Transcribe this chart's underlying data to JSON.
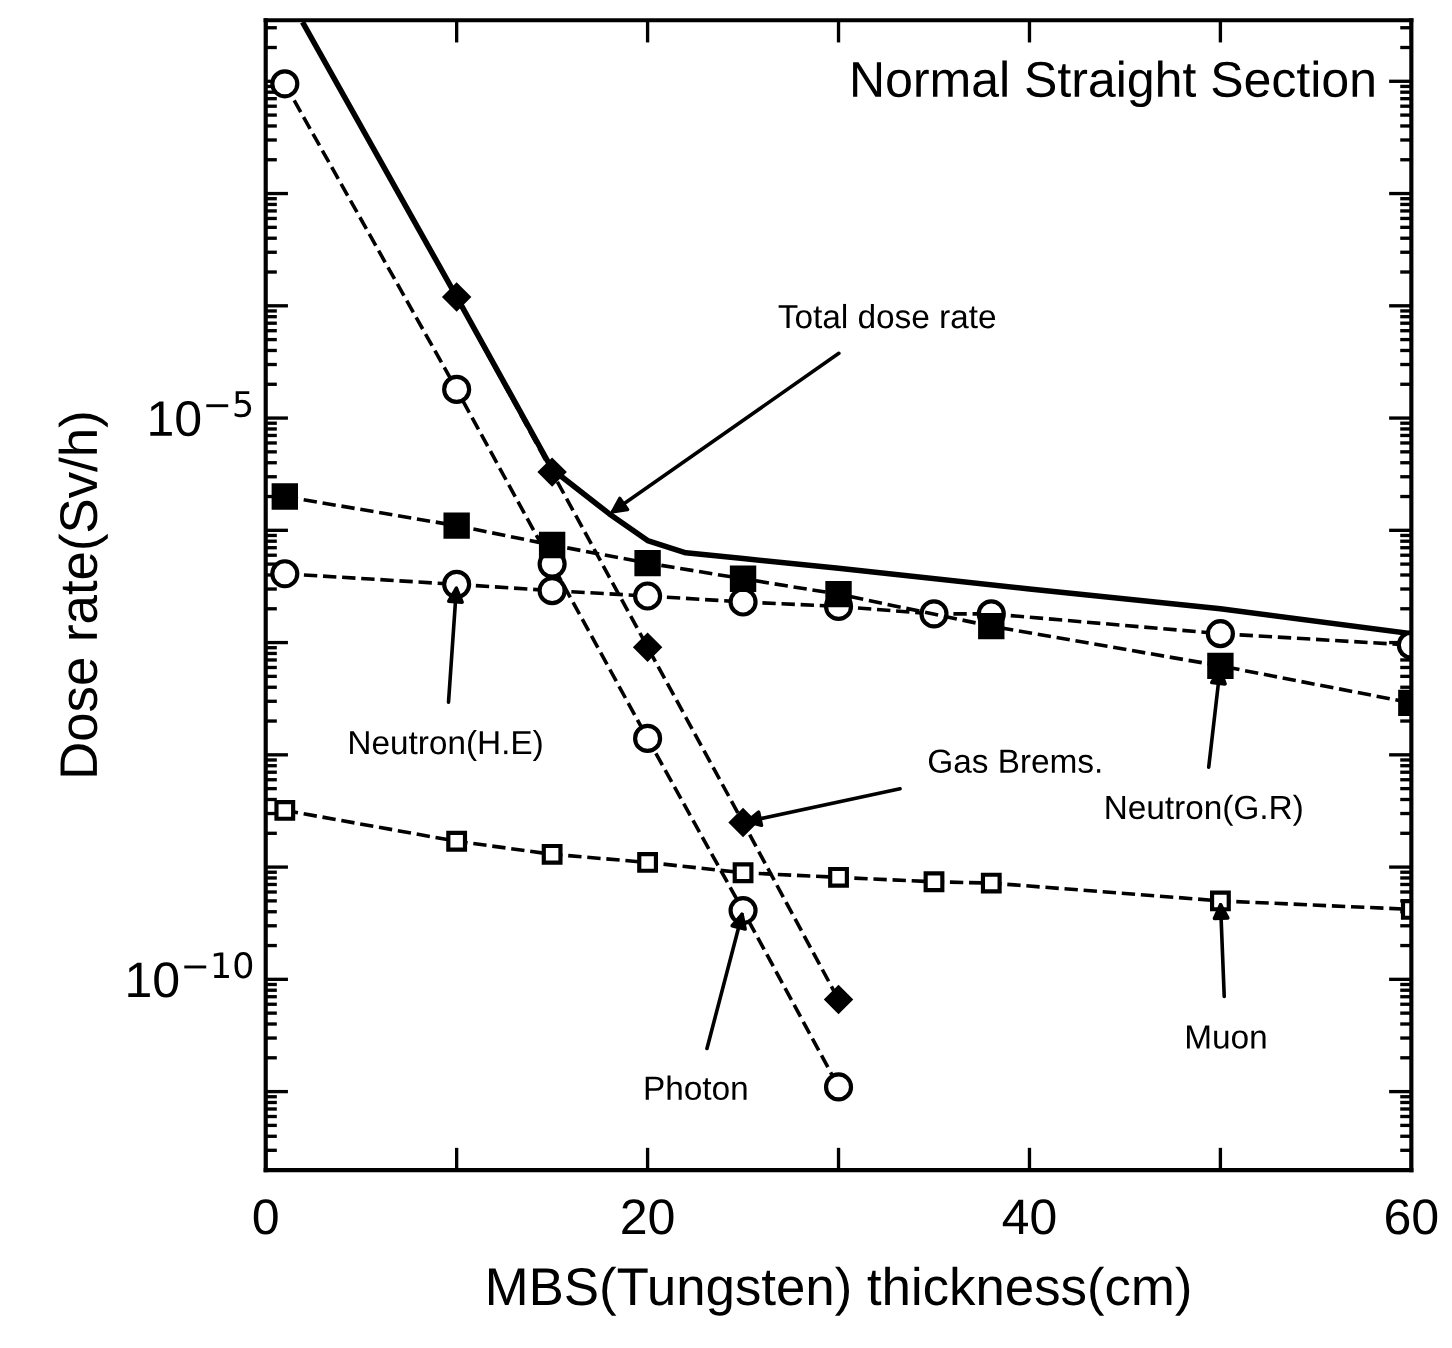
{
  "chart_data": {
    "type": "line",
    "title": "Normal Straight Section",
    "xlabel": "MBS(Tungsten) thickness(cm)",
    "ylabel": "Dose rate(Sv/h)",
    "log": "y",
    "grid": false,
    "legend": false,
    "line_style": "dashed",
    "xlim": [
      0,
      60
    ],
    "xticks": [
      0,
      {
        "value": 10,
        "label": null
      },
      20,
      {
        "value": 30,
        "label": null
      },
      40,
      {
        "value": 50,
        "label": null
      },
      60
    ],
    "ylim": [
      2e-12,
      0.035
    ],
    "yticks": [
      {
        "value": 1e-11,
        "label": null
      },
      {
        "value": 1e-10,
        "label": "10$^{−10}$"
      },
      {
        "value": 1e-09,
        "label": null
      },
      {
        "value": 1e-08,
        "label": null
      },
      {
        "value": 1e-07,
        "label": null
      },
      {
        "value": 1e-06,
        "label": null
      },
      {
        "value": 1e-05,
        "label": "10$^{−5}$"
      },
      {
        "value": 0.0001,
        "label": null
      },
      {
        "value": 0.001,
        "label": null
      },
      {
        "value": 0.01,
        "label": null
      }
    ],
    "series": [
      {
        "color": "#000000",
        "line_style": "solid",
        "marker": "none",
        "x": [
          2,
          10,
          15,
          18,
          20,
          22,
          25,
          30,
          40,
          50,
          60
        ],
        "values": [
          0.032,
          0.00012,
          3.5e-06,
          1.4e-06,
          8.1e-07,
          6.3e-07,
          5.6e-07,
          4.6e-07,
          3e-07,
          2e-07,
          1.2e-07
        ]
      },
      {
        "color": "#000000",
        "marker": "circle",
        "x": [
          1,
          10,
          15,
          20,
          25,
          30
        ],
        "values": [
          0.0095,
          1.8e-05,
          5e-07,
          1.4e-08,
          4.1e-10,
          1.1e-11
        ]
      },
      {
        "color": "#000000",
        "marker": "diamond",
        "x": [
          10,
          15,
          20,
          25,
          30
        ],
        "values": [
          0.00012,
          3.3e-06,
          9.1e-08,
          2.5e-09,
          6.6e-11
        ]
      },
      {
        "color": "#000000",
        "marker": "square",
        "x": [
          1,
          10,
          15,
          20,
          25,
          30,
          38,
          50,
          60
        ],
        "values": [
          2e-06,
          1.1e-06,
          7.4e-07,
          5.1e-07,
          3.7e-07,
          2.7e-07,
          1.4e-07,
          6.2e-08,
          2.9e-08
        ]
      },
      {
        "color": "#000000",
        "marker": "circle",
        "x": [
          1,
          10,
          15,
          20,
          25,
          30,
          35,
          38,
          50,
          60
        ],
        "values": [
          4.1e-07,
          3.3e-07,
          2.9e-07,
          2.6e-07,
          2.3e-07,
          2.1e-07,
          1.8e-07,
          1.8e-07,
          1.2e-07,
          9.5e-08
        ]
      },
      {
        "color": "#000000",
        "marker": "square",
        "x": [
          1,
          10,
          15,
          20,
          25,
          30,
          35,
          38,
          50,
          60
        ],
        "values": [
          3.2e-09,
          1.7e-09,
          1.3e-09,
          1.1e-09,
          8.9e-10,
          8.1e-10,
          7.4e-10,
          7.2e-10,
          5e-10,
          4.2e-10
        ]
      }
    ],
    "annotations": [
      {
        "text": "Total dose rate",
        "x": 18,
        "y": 1.4e-06
      },
      {
        "text": "Neutron(H.E)",
        "x": 10,
        "y": 3.3e-07
      },
      {
        "text": "Gas Brems.",
        "x": 25,
        "y": 2.5e-09
      },
      {
        "text": "Neutron(G.R)",
        "x": 50,
        "y": 6.2e-08
      },
      {
        "text": "Muon",
        "x": 50,
        "y": 5e-10
      },
      {
        "text": "Photon",
        "x": 25,
        "y": 4.1e-10
      }
    ]
  }
}
